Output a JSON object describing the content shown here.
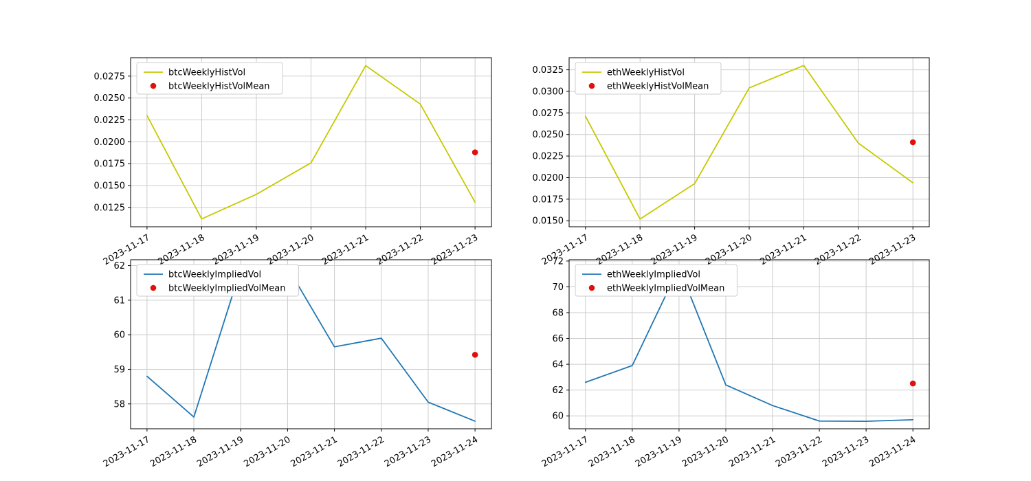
{
  "figure": {
    "background": "#ffffff",
    "grid_color": "#cccccc",
    "axis_color": "#000000",
    "tick_label_color": "#000000",
    "legend_border_color": "#cccccc",
    "legend_background": "#ffffff"
  },
  "chart_data": [
    {
      "id": "btcWeeklyHistVol",
      "type": "line",
      "x": [
        "2023-11-17",
        "2023-11-18",
        "2023-11-19",
        "2023-11-20",
        "2023-11-21",
        "2023-11-22",
        "2023-11-23"
      ],
      "series": [
        {
          "name": "btcWeeklyHistVol",
          "color": "#c8c800",
          "values": [
            0.023,
            0.0112,
            0.014,
            0.0176,
            0.0287,
            0.0243,
            0.0131
          ]
        }
      ],
      "mean_marker": {
        "name": "btcWeeklyHistVolMean",
        "color": "#e01010",
        "x": "2023-11-23",
        "value": 0.0188
      },
      "ytick_labels": [
        "0.0125",
        "0.0150",
        "0.0175",
        "0.0200",
        "0.0225",
        "0.0250",
        "0.0275"
      ],
      "ylim": [
        0.0103,
        0.0296
      ],
      "grid": true,
      "legend": {
        "position": "upper-left",
        "entries": [
          "btcWeeklyHistVol",
          "btcWeeklyHistVolMean"
        ]
      }
    },
    {
      "id": "ethWeeklyHistVol",
      "type": "line",
      "x": [
        "2023-11-17",
        "2023-11-18",
        "2023-11-19",
        "2023-11-20",
        "2023-11-21",
        "2023-11-22",
        "2023-11-23"
      ],
      "series": [
        {
          "name": "ethWeeklyHistVol",
          "color": "#c8c800",
          "values": [
            0.0271,
            0.0152,
            0.0193,
            0.0304,
            0.033,
            0.024,
            0.0194
          ]
        }
      ],
      "mean_marker": {
        "name": "ethWeeklyHistVolMean",
        "color": "#e01010",
        "x": "2023-11-23",
        "value": 0.0241
      },
      "ytick_labels": [
        "0.0150",
        "0.0175",
        "0.0200",
        "0.0225",
        "0.0250",
        "0.0275",
        "0.0300",
        "0.0325"
      ],
      "ylim": [
        0.0143,
        0.0339
      ],
      "grid": true,
      "legend": {
        "position": "upper-left",
        "entries": [
          "ethWeeklyHistVol",
          "ethWeeklyHistVolMean"
        ]
      }
    },
    {
      "id": "btcWeeklyImpliedVol",
      "type": "line",
      "x": [
        "2023-11-17",
        "2023-11-18",
        "2023-11-19",
        "2023-11-20",
        "2023-11-21",
        "2023-11-22",
        "2023-11-23",
        "2023-11-24"
      ],
      "series": [
        {
          "name": "btcWeeklyImpliedVol",
          "color": "#1f77b4",
          "values": [
            58.8,
            57.62,
            61.9,
            61.95,
            59.65,
            59.9,
            58.05,
            57.5
          ]
        }
      ],
      "mean_marker": {
        "name": "btcWeeklyImpliedVolMean",
        "color": "#e01010",
        "x": "2023-11-24",
        "value": 59.42
      },
      "ytick_labels": [
        "58",
        "59",
        "60",
        "61",
        "62"
      ],
      "ylim": [
        57.28,
        62.17
      ],
      "grid": true,
      "legend": {
        "position": "upper-left",
        "entries": [
          "btcWeeklyImpliedVol",
          "btcWeeklyImpliedVolMean"
        ]
      }
    },
    {
      "id": "ethWeeklyImpliedVol",
      "type": "line",
      "x": [
        "2023-11-17",
        "2023-11-18",
        "2023-11-19",
        "2023-11-20",
        "2023-11-21",
        "2023-11-22",
        "2023-11-23",
        "2023-11-24"
      ],
      "series": [
        {
          "name": "ethWeeklyImpliedVol",
          "color": "#1f77b4",
          "values": [
            62.6,
            63.9,
            71.5,
            62.4,
            60.8,
            59.6,
            59.58,
            59.7
          ]
        }
      ],
      "mean_marker": {
        "name": "ethWeeklyImpliedVolMean",
        "color": "#e01010",
        "x": "2023-11-24",
        "value": 62.51
      },
      "ytick_labels": [
        "60",
        "62",
        "64",
        "66",
        "68",
        "70",
        "72"
      ],
      "ylim": [
        59.0,
        72.1
      ],
      "grid": true,
      "legend": {
        "position": "upper-left",
        "entries": [
          "ethWeeklyImpliedVol",
          "ethWeeklyImpliedVolMean"
        ]
      }
    }
  ]
}
